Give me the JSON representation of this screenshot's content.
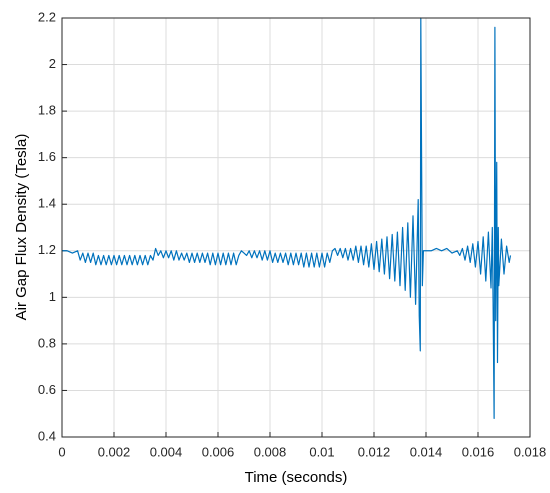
{
  "chart_data": {
    "type": "line",
    "xlabel": "Time (seconds)",
    "ylabel": "Air Gap Flux Density (Tesla)",
    "color": "#0072bd",
    "grid": true,
    "xlim": [
      0,
      0.018
    ],
    "xticks": [
      0,
      0.002,
      0.004,
      0.006,
      0.008,
      0.01,
      0.012,
      0.014,
      0.016,
      0.018
    ],
    "ylim": [
      0.4,
      2.2
    ],
    "yticks": [
      0.4,
      0.6,
      0.8,
      1,
      1.2,
      1.4,
      1.6,
      1.8,
      2,
      2.2
    ],
    "x": [
      0,
      0.0002,
      0.0004,
      0.0006,
      0.0007,
      0.0008,
      0.0009,
      0.001,
      0.0011,
      0.0012,
      0.0013,
      0.0014,
      0.0015,
      0.0016,
      0.0017,
      0.0018,
      0.0019,
      0.002,
      0.0021,
      0.0022,
      0.0023,
      0.0024,
      0.0025,
      0.0026,
      0.0027,
      0.0028,
      0.0029,
      0.003,
      0.0031,
      0.0032,
      0.0033,
      0.0034,
      0.0035,
      0.0036,
      0.0037,
      0.0038,
      0.0039,
      0.004,
      0.0041,
      0.0042,
      0.0043,
      0.0044,
      0.0045,
      0.0046,
      0.0047,
      0.0048,
      0.0049,
      0.005,
      0.0051,
      0.0052,
      0.0053,
      0.0054,
      0.0055,
      0.0056,
      0.0057,
      0.0058,
      0.0059,
      0.006,
      0.0061,
      0.0062,
      0.0063,
      0.0064,
      0.0065,
      0.0066,
      0.0067,
      0.0068,
      0.0069,
      0.007,
      0.0071,
      0.0072,
      0.0073,
      0.0074,
      0.0075,
      0.0076,
      0.0077,
      0.0078,
      0.0079,
      0.008,
      0.0081,
      0.0082,
      0.0083,
      0.0084,
      0.0085,
      0.0086,
      0.0087,
      0.0088,
      0.0089,
      0.009,
      0.0091,
      0.0092,
      0.0093,
      0.0094,
      0.0095,
      0.0096,
      0.0097,
      0.0098,
      0.0099,
      0.01,
      0.0101,
      0.0102,
      0.0103,
      0.0104,
      0.0105,
      0.0106,
      0.0107,
      0.0108,
      0.0109,
      0.011,
      0.0111,
      0.0112,
      0.0113,
      0.0114,
      0.0115,
      0.0116,
      0.0117,
      0.0118,
      0.0119,
      0.012,
      0.0121,
      0.0122,
      0.0123,
      0.0124,
      0.0125,
      0.0126,
      0.0127,
      0.0128,
      0.0129,
      0.013,
      0.0131,
      0.0132,
      0.0133,
      0.0134,
      0.0135,
      0.0136,
      0.0137,
      0.01374,
      0.01378,
      0.0138,
      0.01383,
      0.01386,
      0.0139,
      0.014,
      0.0142,
      0.0144,
      0.0146,
      0.0148,
      0.015,
      0.0152,
      0.0153,
      0.0154,
      0.0155,
      0.0156,
      0.0157,
      0.0158,
      0.0159,
      0.016,
      0.0161,
      0.0162,
      0.0163,
      0.0164,
      0.0165,
      0.01655,
      0.01658,
      0.01662,
      0.01665,
      0.01668,
      0.01672,
      0.01675,
      0.01678,
      0.0168,
      0.0169,
      0.017,
      0.0171,
      0.0172,
      0.01725
    ],
    "values": [
      1.2,
      1.2,
      1.19,
      1.2,
      1.16,
      1.19,
      1.15,
      1.19,
      1.15,
      1.19,
      1.14,
      1.18,
      1.14,
      1.18,
      1.14,
      1.18,
      1.14,
      1.18,
      1.14,
      1.18,
      1.14,
      1.18,
      1.14,
      1.18,
      1.14,
      1.18,
      1.14,
      1.18,
      1.14,
      1.18,
      1.14,
      1.18,
      1.16,
      1.21,
      1.18,
      1.2,
      1.17,
      1.2,
      1.17,
      1.2,
      1.16,
      1.2,
      1.16,
      1.19,
      1.16,
      1.19,
      1.15,
      1.19,
      1.15,
      1.19,
      1.15,
      1.19,
      1.15,
      1.19,
      1.14,
      1.19,
      1.14,
      1.19,
      1.14,
      1.19,
      1.14,
      1.19,
      1.14,
      1.19,
      1.14,
      1.18,
      1.2,
      1.19,
      1.18,
      1.2,
      1.17,
      1.2,
      1.17,
      1.2,
      1.16,
      1.2,
      1.16,
      1.2,
      1.15,
      1.19,
      1.15,
      1.19,
      1.15,
      1.19,
      1.14,
      1.19,
      1.14,
      1.19,
      1.14,
      1.19,
      1.13,
      1.19,
      1.13,
      1.19,
      1.13,
      1.19,
      1.13,
      1.19,
      1.13,
      1.19,
      1.15,
      1.2,
      1.21,
      1.18,
      1.21,
      1.17,
      1.21,
      1.16,
      1.21,
      1.16,
      1.22,
      1.15,
      1.22,
      1.14,
      1.22,
      1.13,
      1.23,
      1.12,
      1.24,
      1.11,
      1.25,
      1.1,
      1.26,
      1.08,
      1.27,
      1.07,
      1.28,
      1.05,
      1.3,
      1.03,
      1.32,
      1,
      1.35,
      0.97,
      1.42,
      0.92,
      0.77,
      2.2,
      1.6,
      1.05,
      1.2,
      1.2,
      1.2,
      1.21,
      1.2,
      1.21,
      1.19,
      1.2,
      1.18,
      1.21,
      1.16,
      1.22,
      1.15,
      1.23,
      1.13,
      1.24,
      1.1,
      1.26,
      1.07,
      1.28,
      1.04,
      1.3,
      0.98,
      0.48,
      2.16,
      0.9,
      1.58,
      0.72,
      1.3,
      1.05,
      1.25,
      1.1,
      1.22,
      1.15,
      1.18
    ]
  }
}
